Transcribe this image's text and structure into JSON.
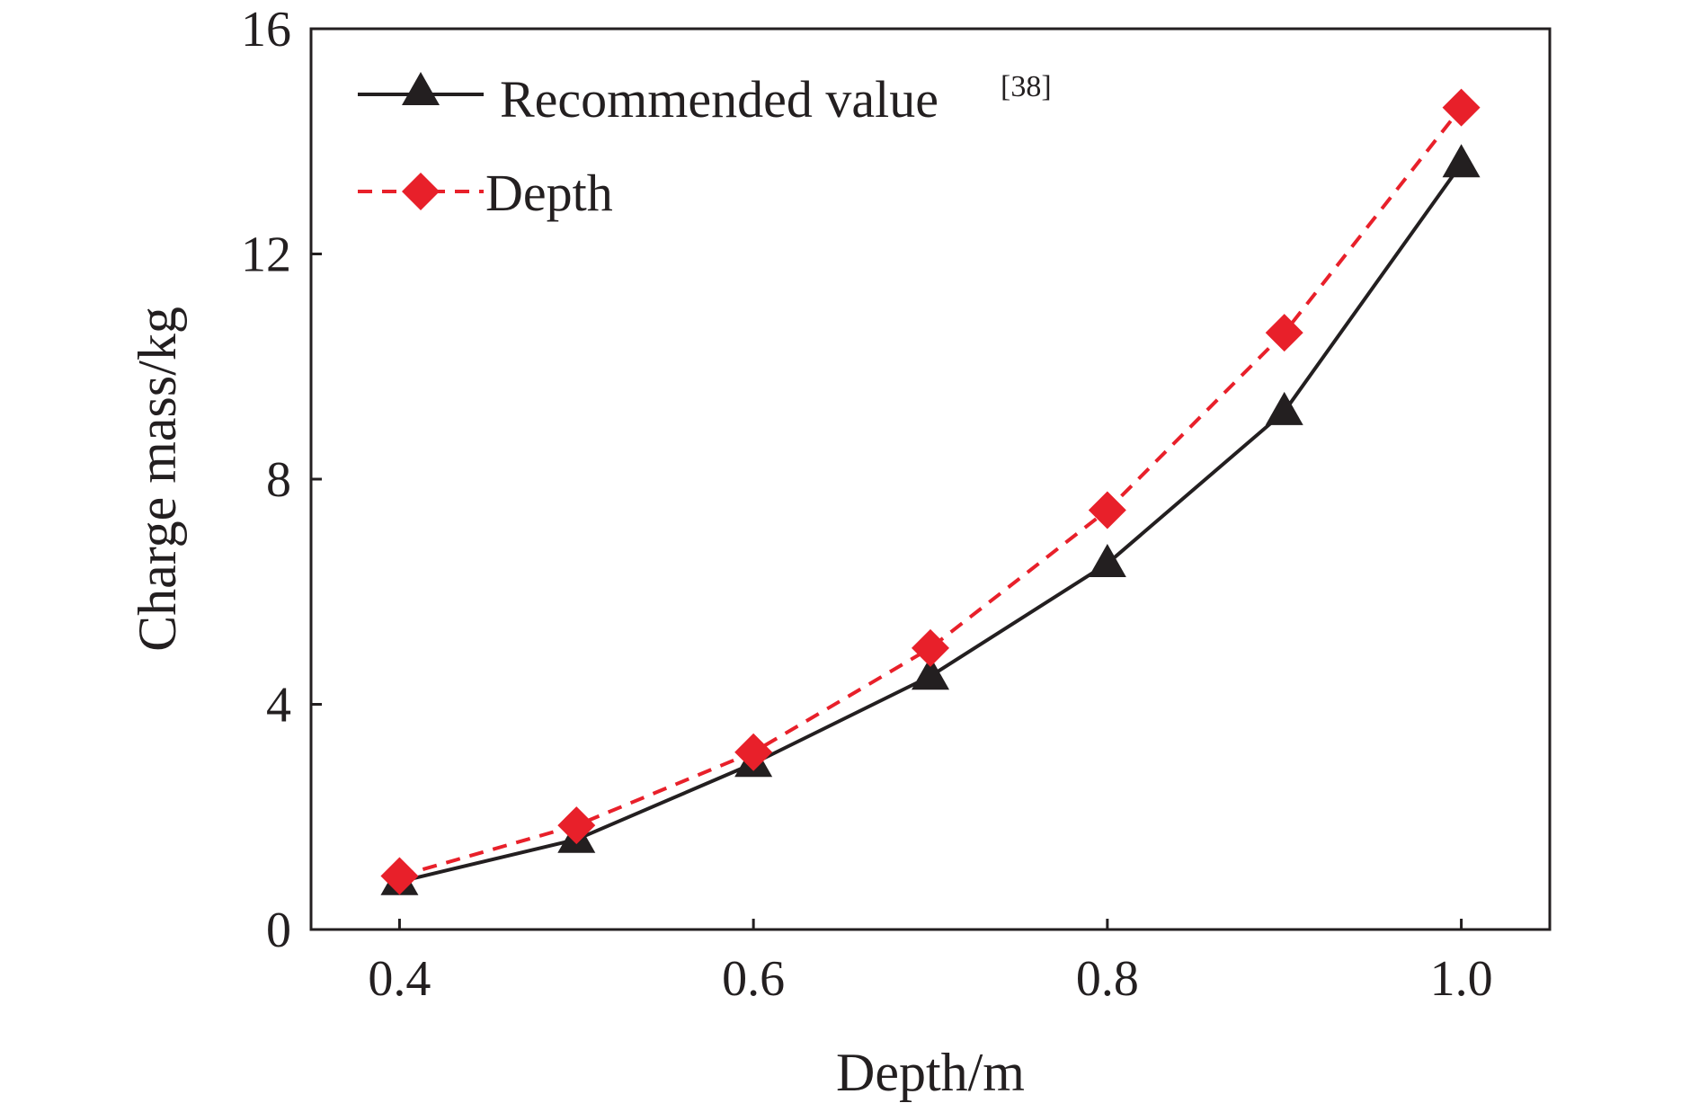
{
  "chart_data": {
    "type": "line",
    "xlabel": "Depth/m",
    "ylabel": "Charge mass/kg",
    "x": [
      0.4,
      0.5,
      0.6,
      0.7,
      0.8,
      0.9,
      1.0
    ],
    "xlim": [
      0.35,
      1.05
    ],
    "ylim": [
      0,
      16
    ],
    "xticks": [
      "0.4",
      "0.6",
      "0.8",
      "1.0"
    ],
    "yticks": [
      "0",
      "4",
      "8",
      "12",
      "16"
    ],
    "grid": false,
    "legend_position": "top-left",
    "series": [
      {
        "name": "Recommended value",
        "name_sup": "[38]",
        "values": [
          0.85,
          1.6,
          2.95,
          4.5,
          6.5,
          9.2,
          13.6
        ],
        "color": "#231f20",
        "line_style": "solid",
        "marker": "triangle"
      },
      {
        "name": "Depth",
        "values": [
          0.95,
          1.85,
          3.15,
          5.0,
          7.45,
          10.6,
          14.6
        ],
        "color": "#e8202a",
        "line_style": "dashed",
        "marker": "diamond"
      }
    ]
  }
}
